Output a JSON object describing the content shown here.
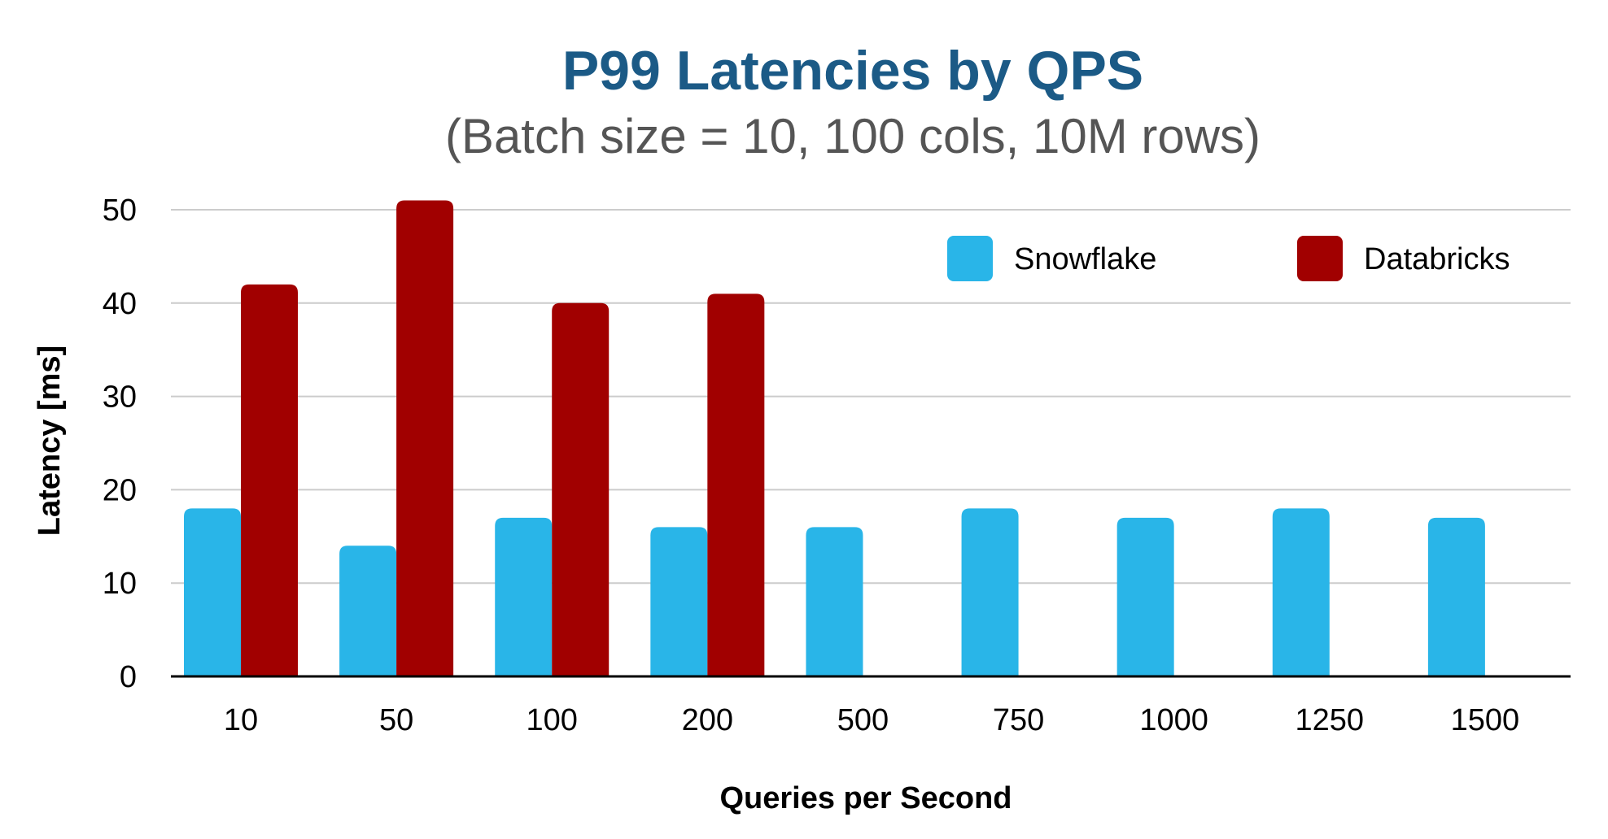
{
  "chart_data": {
    "type": "bar",
    "title": "P99 Latencies by QPS",
    "subtitle": "(Batch size = 10, 100 cols, 10M rows)",
    "xlabel": "Queries per Second",
    "ylabel": "Latency [ms]",
    "categories": [
      "10",
      "50",
      "100",
      "200",
      "500",
      "750",
      "1000",
      "1250",
      "1500"
    ],
    "series": [
      {
        "name": "Snowflake",
        "color": "#29B5E8",
        "values": [
          18,
          14,
          17,
          16,
          16,
          18,
          17,
          18,
          17
        ]
      },
      {
        "name": "Databricks",
        "color": "#A10000",
        "values": [
          42,
          51,
          40,
          41,
          null,
          null,
          null,
          null,
          null
        ]
      }
    ],
    "ylim": [
      0,
      50
    ],
    "yticks": [
      0,
      10,
      20,
      30,
      40,
      50
    ],
    "grid": true,
    "legend_position": "top-right"
  },
  "colors": {
    "title": "#1B5A86",
    "subtitle": "#555555",
    "gridline": "#CCCCCC",
    "axis": "#000000"
  }
}
